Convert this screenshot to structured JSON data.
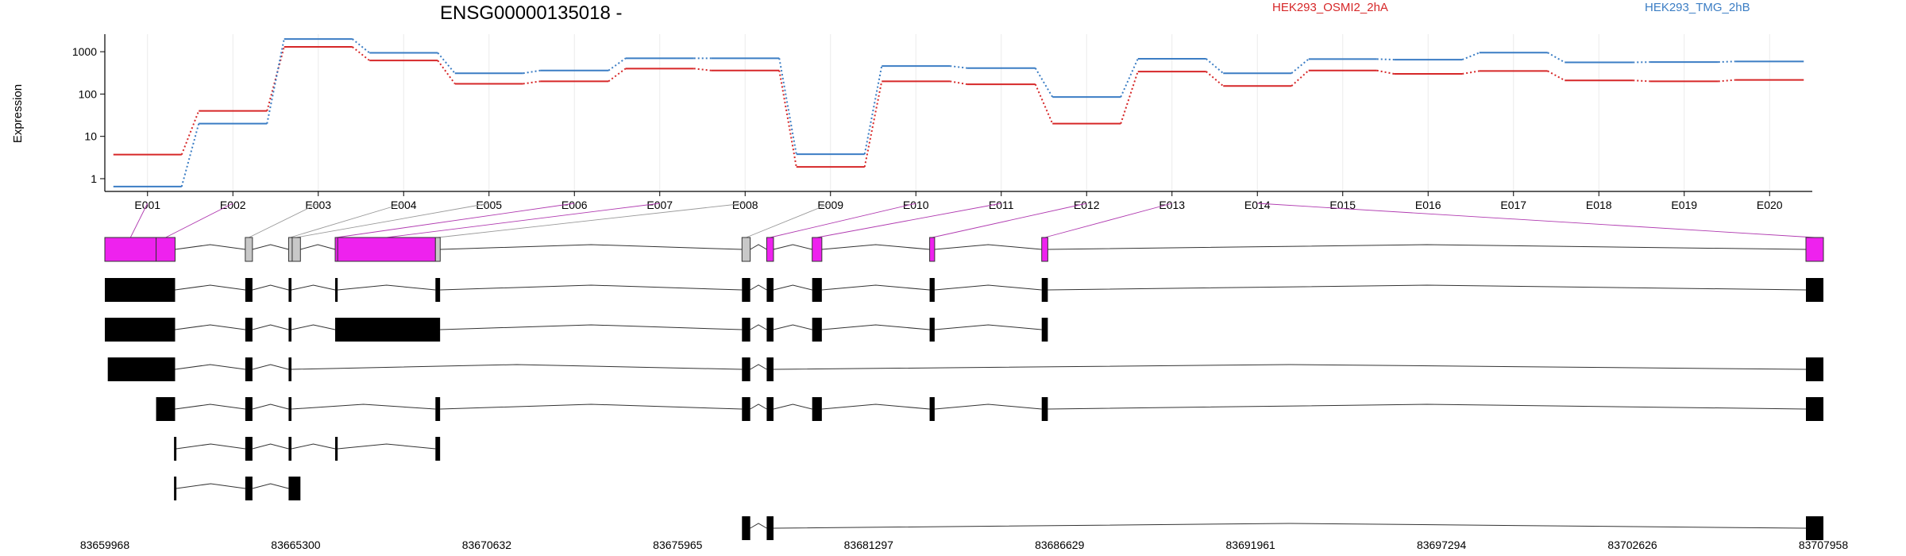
{
  "chart_data": {
    "type": "line",
    "title": "ENSG00000135018 -",
    "ylabel": "Expression",
    "yscale": "log",
    "ylim": [
      0.5,
      2600
    ],
    "yticks": [
      {
        "value": 1,
        "label": "1"
      },
      {
        "value": 10,
        "label": "10"
      },
      {
        "value": 100,
        "label": "100"
      },
      {
        "value": 1000,
        "label": "1000"
      }
    ],
    "categories": [
      "E001",
      "E002",
      "E003",
      "E004",
      "E005",
      "E006",
      "E007",
      "E008",
      "E009",
      "E010",
      "E011",
      "E012",
      "E013",
      "E014",
      "E015",
      "E016",
      "E017",
      "E018",
      "E019",
      "E020"
    ],
    "grid": true,
    "legend_position": "top-right",
    "series": [
      {
        "name": "HEK293_OSMI2_2hA",
        "color": "#d62728",
        "values": [
          3.7,
          40,
          1300,
          620,
          175,
          200,
          400,
          360,
          1.9,
          200,
          170,
          20,
          340,
          155,
          360,
          300,
          350,
          210,
          200,
          215
        ]
      },
      {
        "name": "HEK293_TMG_2hB",
        "color": "#3b7dc4",
        "values": [
          0.65,
          20,
          2000,
          940,
          310,
          360,
          700,
          700,
          3.8,
          460,
          410,
          85,
          680,
          310,
          670,
          650,
          950,
          560,
          570,
          590
        ]
      }
    ],
    "coordinate_axis": {
      "labels": [
        "83659968",
        "83665300",
        "83670632",
        "83675965",
        "83681297",
        "83686629",
        "83691961",
        "83697294",
        "83702626",
        "83707958"
      ],
      "min": 83659968,
      "max": 83707958
    },
    "exon_colors": {
      "significant": "#ee22ee",
      "not_significant": "#c8c8c8",
      "transcript": "#000000"
    },
    "exons": [
      {
        "start": 83659968,
        "end": 83661400,
        "significant": true
      },
      {
        "start": 83661400,
        "end": 83661930,
        "significant": true
      },
      {
        "start": 83663890,
        "end": 83664090,
        "significant": false
      },
      {
        "start": 83665100,
        "end": 83665180,
        "significant": false
      },
      {
        "start": 83665200,
        "end": 83665430,
        "significant": false
      },
      {
        "start": 83666400,
        "end": 83666470,
        "significant": true
      },
      {
        "start": 83666470,
        "end": 83669200,
        "significant": true
      },
      {
        "start": 83669200,
        "end": 83669330,
        "significant": false
      },
      {
        "start": 83677760,
        "end": 83677990,
        "significant": false
      },
      {
        "start": 83678450,
        "end": 83678640,
        "significant": true
      },
      {
        "start": 83679720,
        "end": 83679990,
        "significant": true
      },
      {
        "start": 83683000,
        "end": 83683140,
        "significant": true
      },
      {
        "start": 83686130,
        "end": 83686300,
        "significant": true
      },
      {
        "start": 83707470,
        "end": 83707958,
        "significant": true
      }
    ],
    "transcripts": [
      {
        "exons": [
          [
            83659968,
            83661930
          ],
          [
            83663890,
            83664090
          ],
          [
            83665100,
            83665180
          ],
          [
            83666400,
            83666470
          ],
          [
            83669200,
            83669330
          ],
          [
            83677760,
            83677990
          ],
          [
            83678450,
            83678640
          ],
          [
            83679720,
            83679990
          ],
          [
            83683000,
            83683140
          ],
          [
            83686130,
            83686300
          ],
          [
            83707470,
            83707958
          ]
        ]
      },
      {
        "exons": [
          [
            83659968,
            83661930
          ],
          [
            83663890,
            83664090
          ],
          [
            83665100,
            83665180
          ],
          [
            83666400,
            83669330
          ],
          [
            83677760,
            83677990
          ],
          [
            83678450,
            83678640
          ],
          [
            83679720,
            83679990
          ],
          [
            83683000,
            83683140
          ],
          [
            83686130,
            83686300
          ]
        ]
      },
      {
        "exons": [
          [
            83660050,
            83661930
          ],
          [
            83663890,
            83664090
          ],
          [
            83665100,
            83665180
          ],
          [
            83677760,
            83677990
          ],
          [
            83678450,
            83678640
          ],
          [
            83707470,
            83707958
          ]
        ]
      },
      {
        "exons": [
          [
            83661400,
            83661930
          ],
          [
            83663890,
            83664090
          ],
          [
            83665100,
            83665180
          ],
          [
            83669200,
            83669330
          ],
          [
            83677760,
            83677990
          ],
          [
            83678450,
            83678640
          ],
          [
            83679720,
            83679990
          ],
          [
            83683000,
            83683140
          ],
          [
            83686130,
            83686300
          ],
          [
            83707470,
            83707958
          ]
        ]
      },
      {
        "exons": [
          [
            83661900,
            83661960
          ],
          [
            83663890,
            83664090
          ],
          [
            83665100,
            83665180
          ],
          [
            83666400,
            83666470
          ],
          [
            83669200,
            83669330
          ]
        ]
      },
      {
        "exons": [
          [
            83661900,
            83661960
          ],
          [
            83663890,
            83664090
          ],
          [
            83665100,
            83665430
          ]
        ]
      },
      {
        "exons": [
          [
            83677760,
            83677990
          ],
          [
            83678450,
            83678640
          ],
          [
            83707470,
            83707958
          ]
        ]
      }
    ]
  }
}
